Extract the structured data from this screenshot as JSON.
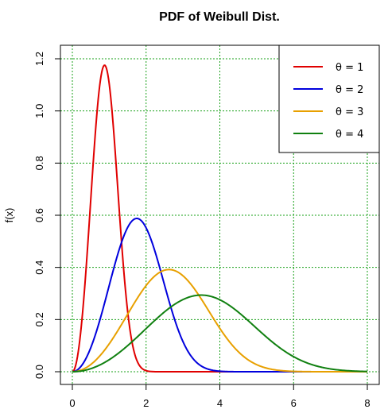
{
  "chart_data": {
    "type": "line",
    "title": "PDF of Weibull Dist.",
    "xlabel": "",
    "ylabel": "f(x)",
    "xlim": [
      0,
      8
    ],
    "ylim": [
      0,
      1.2
    ],
    "x_ticks": [
      "0",
      "2",
      "4",
      "6",
      "8"
    ],
    "y_ticks": [
      "0.0",
      "0.2",
      "0.4",
      "0.6",
      "0.8",
      "1.0",
      "1.2"
    ],
    "grid": true,
    "legend_position": "top-right",
    "shape": 3,
    "series": [
      {
        "name": "θ = 1",
        "scale": 1,
        "color": "#e00000"
      },
      {
        "name": "θ = 2",
        "scale": 2,
        "color": "#0000dd"
      },
      {
        "name": "θ = 3",
        "scale": 3,
        "color": "#e8a000"
      },
      {
        "name": "θ = 4",
        "scale": 4,
        "color": "#108010"
      }
    ]
  }
}
